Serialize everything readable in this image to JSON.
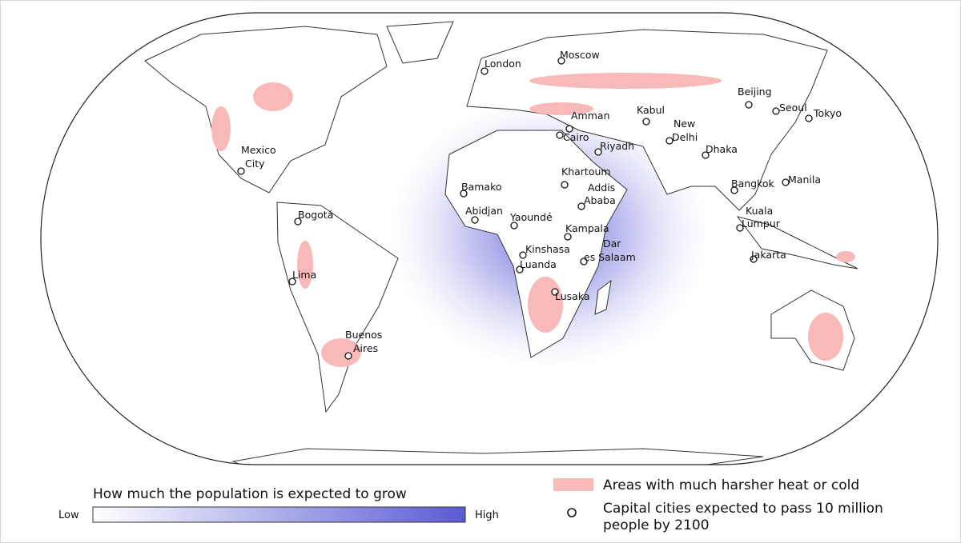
{
  "legend": {
    "title": "How much the population is expected to grow",
    "low": "Low",
    "high": "High",
    "heat": "Areas with much harsher heat or cold",
    "capitals": [
      "Capital cities expected to pass 10 million",
      "people by 2100"
    ]
  },
  "cities": [
    {
      "label": [
        "London"
      ]
    },
    {
      "label": [
        "Moscow"
      ]
    },
    {
      "label": [
        "Beijing"
      ]
    },
    {
      "label": [
        "Seoul"
      ]
    },
    {
      "label": [
        "Tokyo"
      ]
    },
    {
      "label": [
        "Kabul"
      ]
    },
    {
      "label": [
        "Amman"
      ]
    },
    {
      "label": [
        "Cairo"
      ]
    },
    {
      "label": [
        "New",
        "Delhi"
      ]
    },
    {
      "label": [
        "Riyadh"
      ]
    },
    {
      "label": [
        "Dhaka"
      ]
    },
    {
      "label": [
        "Mexico",
        "City"
      ]
    },
    {
      "label": [
        "Khartoum"
      ]
    },
    {
      "label": [
        "Addis",
        "Ababa"
      ]
    },
    {
      "label": [
        "Bamako"
      ]
    },
    {
      "label": [
        "Bangkok"
      ]
    },
    {
      "label": [
        "Manila"
      ]
    },
    {
      "label": [
        "Bogotá"
      ]
    },
    {
      "label": [
        "Abidjan"
      ]
    },
    {
      "label": [
        "Yaoundé"
      ]
    },
    {
      "label": [
        "Kuala",
        "Lumpur"
      ]
    },
    {
      "label": [
        "Kampala"
      ]
    },
    {
      "label": [
        "Kinshasa"
      ]
    },
    {
      "label": [
        "Dar",
        "es Salaam"
      ]
    },
    {
      "label": [
        "Luanda"
      ]
    },
    {
      "label": [
        "Jakarta"
      ]
    },
    {
      "label": [
        "Lima"
      ]
    },
    {
      "label": [
        "Lusaka"
      ]
    },
    {
      "label": [
        "Buenos",
        "Aires"
      ]
    }
  ]
}
